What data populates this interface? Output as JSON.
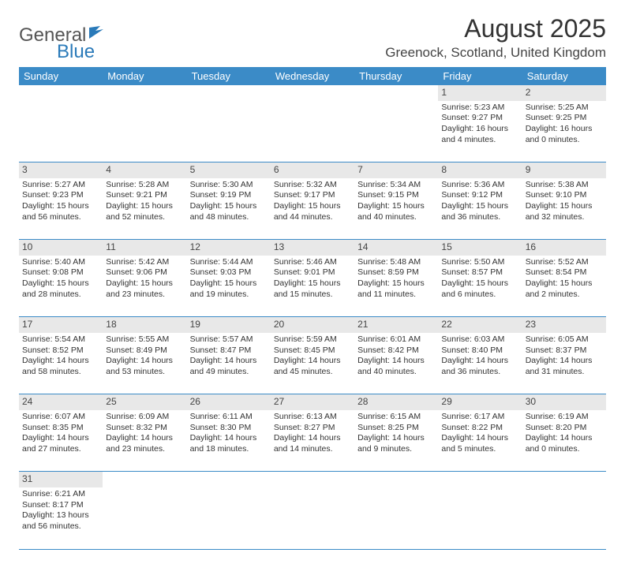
{
  "logo": {
    "part1": "General",
    "part2": "Blue"
  },
  "title": "August 2025",
  "location": "Greenock, Scotland, United Kingdom",
  "colors": {
    "header_bg": "#3b8bc7",
    "header_text": "#ffffff",
    "daynum_bg": "#e8e8e8",
    "row_border": "#3b8bc7",
    "text": "#333333"
  },
  "weekdays": [
    "Sunday",
    "Monday",
    "Tuesday",
    "Wednesday",
    "Thursday",
    "Friday",
    "Saturday"
  ],
  "weeks": [
    [
      null,
      null,
      null,
      null,
      null,
      {
        "n": "1",
        "sunrise": "Sunrise: 5:23 AM",
        "sunset": "Sunset: 9:27 PM",
        "day1": "Daylight: 16 hours",
        "day2": "and 4 minutes."
      },
      {
        "n": "2",
        "sunrise": "Sunrise: 5:25 AM",
        "sunset": "Sunset: 9:25 PM",
        "day1": "Daylight: 16 hours",
        "day2": "and 0 minutes."
      }
    ],
    [
      {
        "n": "3",
        "sunrise": "Sunrise: 5:27 AM",
        "sunset": "Sunset: 9:23 PM",
        "day1": "Daylight: 15 hours",
        "day2": "and 56 minutes."
      },
      {
        "n": "4",
        "sunrise": "Sunrise: 5:28 AM",
        "sunset": "Sunset: 9:21 PM",
        "day1": "Daylight: 15 hours",
        "day2": "and 52 minutes."
      },
      {
        "n": "5",
        "sunrise": "Sunrise: 5:30 AM",
        "sunset": "Sunset: 9:19 PM",
        "day1": "Daylight: 15 hours",
        "day2": "and 48 minutes."
      },
      {
        "n": "6",
        "sunrise": "Sunrise: 5:32 AM",
        "sunset": "Sunset: 9:17 PM",
        "day1": "Daylight: 15 hours",
        "day2": "and 44 minutes."
      },
      {
        "n": "7",
        "sunrise": "Sunrise: 5:34 AM",
        "sunset": "Sunset: 9:15 PM",
        "day1": "Daylight: 15 hours",
        "day2": "and 40 minutes."
      },
      {
        "n": "8",
        "sunrise": "Sunrise: 5:36 AM",
        "sunset": "Sunset: 9:12 PM",
        "day1": "Daylight: 15 hours",
        "day2": "and 36 minutes."
      },
      {
        "n": "9",
        "sunrise": "Sunrise: 5:38 AM",
        "sunset": "Sunset: 9:10 PM",
        "day1": "Daylight: 15 hours",
        "day2": "and 32 minutes."
      }
    ],
    [
      {
        "n": "10",
        "sunrise": "Sunrise: 5:40 AM",
        "sunset": "Sunset: 9:08 PM",
        "day1": "Daylight: 15 hours",
        "day2": "and 28 minutes."
      },
      {
        "n": "11",
        "sunrise": "Sunrise: 5:42 AM",
        "sunset": "Sunset: 9:06 PM",
        "day1": "Daylight: 15 hours",
        "day2": "and 23 minutes."
      },
      {
        "n": "12",
        "sunrise": "Sunrise: 5:44 AM",
        "sunset": "Sunset: 9:03 PM",
        "day1": "Daylight: 15 hours",
        "day2": "and 19 minutes."
      },
      {
        "n": "13",
        "sunrise": "Sunrise: 5:46 AM",
        "sunset": "Sunset: 9:01 PM",
        "day1": "Daylight: 15 hours",
        "day2": "and 15 minutes."
      },
      {
        "n": "14",
        "sunrise": "Sunrise: 5:48 AM",
        "sunset": "Sunset: 8:59 PM",
        "day1": "Daylight: 15 hours",
        "day2": "and 11 minutes."
      },
      {
        "n": "15",
        "sunrise": "Sunrise: 5:50 AM",
        "sunset": "Sunset: 8:57 PM",
        "day1": "Daylight: 15 hours",
        "day2": "and 6 minutes."
      },
      {
        "n": "16",
        "sunrise": "Sunrise: 5:52 AM",
        "sunset": "Sunset: 8:54 PM",
        "day1": "Daylight: 15 hours",
        "day2": "and 2 minutes."
      }
    ],
    [
      {
        "n": "17",
        "sunrise": "Sunrise: 5:54 AM",
        "sunset": "Sunset: 8:52 PM",
        "day1": "Daylight: 14 hours",
        "day2": "and 58 minutes."
      },
      {
        "n": "18",
        "sunrise": "Sunrise: 5:55 AM",
        "sunset": "Sunset: 8:49 PM",
        "day1": "Daylight: 14 hours",
        "day2": "and 53 minutes."
      },
      {
        "n": "19",
        "sunrise": "Sunrise: 5:57 AM",
        "sunset": "Sunset: 8:47 PM",
        "day1": "Daylight: 14 hours",
        "day2": "and 49 minutes."
      },
      {
        "n": "20",
        "sunrise": "Sunrise: 5:59 AM",
        "sunset": "Sunset: 8:45 PM",
        "day1": "Daylight: 14 hours",
        "day2": "and 45 minutes."
      },
      {
        "n": "21",
        "sunrise": "Sunrise: 6:01 AM",
        "sunset": "Sunset: 8:42 PM",
        "day1": "Daylight: 14 hours",
        "day2": "and 40 minutes."
      },
      {
        "n": "22",
        "sunrise": "Sunrise: 6:03 AM",
        "sunset": "Sunset: 8:40 PM",
        "day1": "Daylight: 14 hours",
        "day2": "and 36 minutes."
      },
      {
        "n": "23",
        "sunrise": "Sunrise: 6:05 AM",
        "sunset": "Sunset: 8:37 PM",
        "day1": "Daylight: 14 hours",
        "day2": "and 31 minutes."
      }
    ],
    [
      {
        "n": "24",
        "sunrise": "Sunrise: 6:07 AM",
        "sunset": "Sunset: 8:35 PM",
        "day1": "Daylight: 14 hours",
        "day2": "and 27 minutes."
      },
      {
        "n": "25",
        "sunrise": "Sunrise: 6:09 AM",
        "sunset": "Sunset: 8:32 PM",
        "day1": "Daylight: 14 hours",
        "day2": "and 23 minutes."
      },
      {
        "n": "26",
        "sunrise": "Sunrise: 6:11 AM",
        "sunset": "Sunset: 8:30 PM",
        "day1": "Daylight: 14 hours",
        "day2": "and 18 minutes."
      },
      {
        "n": "27",
        "sunrise": "Sunrise: 6:13 AM",
        "sunset": "Sunset: 8:27 PM",
        "day1": "Daylight: 14 hours",
        "day2": "and 14 minutes."
      },
      {
        "n": "28",
        "sunrise": "Sunrise: 6:15 AM",
        "sunset": "Sunset: 8:25 PM",
        "day1": "Daylight: 14 hours",
        "day2": "and 9 minutes."
      },
      {
        "n": "29",
        "sunrise": "Sunrise: 6:17 AM",
        "sunset": "Sunset: 8:22 PM",
        "day1": "Daylight: 14 hours",
        "day2": "and 5 minutes."
      },
      {
        "n": "30",
        "sunrise": "Sunrise: 6:19 AM",
        "sunset": "Sunset: 8:20 PM",
        "day1": "Daylight: 14 hours",
        "day2": "and 0 minutes."
      }
    ],
    [
      {
        "n": "31",
        "sunrise": "Sunrise: 6:21 AM",
        "sunset": "Sunset: 8:17 PM",
        "day1": "Daylight: 13 hours",
        "day2": "and 56 minutes."
      },
      null,
      null,
      null,
      null,
      null,
      null
    ]
  ]
}
